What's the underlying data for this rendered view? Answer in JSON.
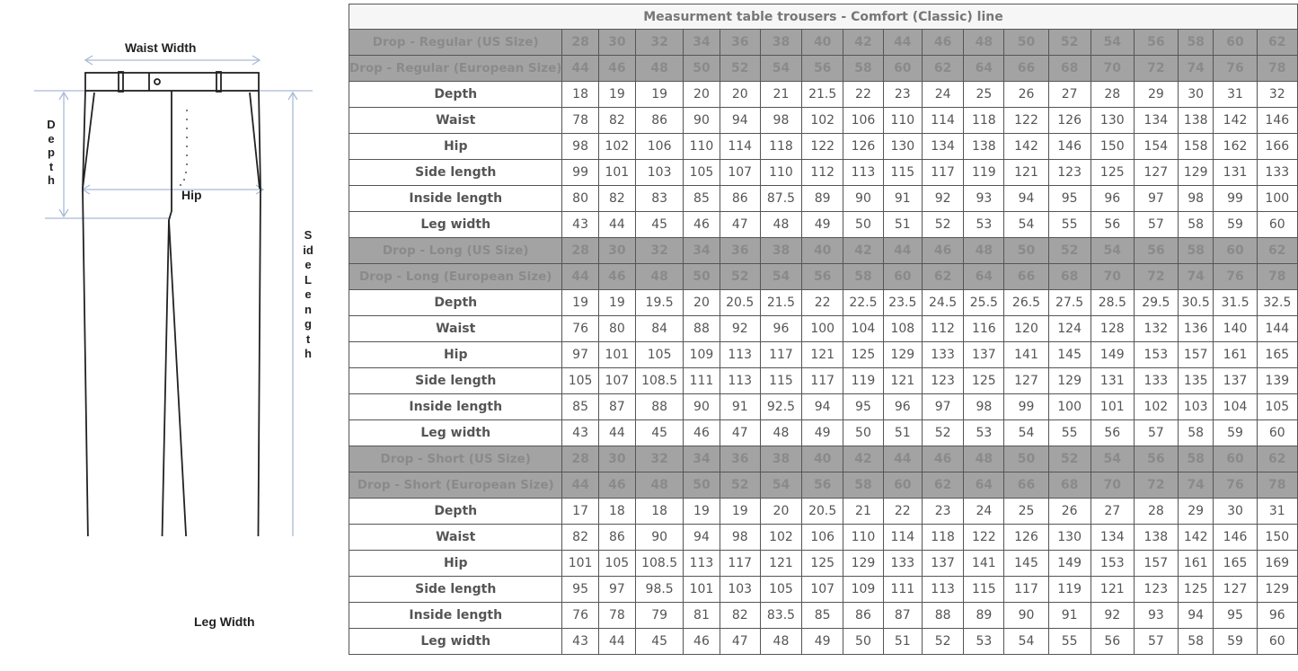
{
  "diagram": {
    "waist_width": "Waist Width",
    "depth": "Depth",
    "hip": "Hip",
    "side_length": "Side Length",
    "leg_width": "Leg Width"
  },
  "table": {
    "title": "Measurment table trousers - Comfort (Classic) line",
    "sections": [
      {
        "us_label": "Drop - Regular (US Size)",
        "us_sizes": [
          "28",
          "30",
          "32",
          "34",
          "36",
          "38",
          "40",
          "42",
          "44",
          "46",
          "48",
          "50",
          "52",
          "54",
          "56",
          "58",
          "60",
          "62"
        ],
        "eu_label": "Drop - Regular (European Size)",
        "eu_sizes": [
          "44",
          "46",
          "48",
          "50",
          "52",
          "54",
          "56",
          "58",
          "60",
          "62",
          "64",
          "66",
          "68",
          "70",
          "72",
          "74",
          "76",
          "78"
        ],
        "rows": [
          {
            "label": "Depth",
            "values": [
              "18",
              "19",
              "19",
              "20",
              "20",
              "21",
              "21.5",
              "22",
              "23",
              "24",
              "25",
              "26",
              "27",
              "28",
              "29",
              "30",
              "31",
              "32"
            ]
          },
          {
            "label": "Waist",
            "values": [
              "78",
              "82",
              "86",
              "90",
              "94",
              "98",
              "102",
              "106",
              "110",
              "114",
              "118",
              "122",
              "126",
              "130",
              "134",
              "138",
              "142",
              "146"
            ]
          },
          {
            "label": "Hip",
            "values": [
              "98",
              "102",
              "106",
              "110",
              "114",
              "118",
              "122",
              "126",
              "130",
              "134",
              "138",
              "142",
              "146",
              "150",
              "154",
              "158",
              "162",
              "166"
            ]
          },
          {
            "label": "Side length",
            "values": [
              "99",
              "101",
              "103",
              "105",
              "107",
              "110",
              "112",
              "113",
              "115",
              "117",
              "119",
              "121",
              "123",
              "125",
              "127",
              "129",
              "131",
              "133"
            ]
          },
          {
            "label": "Inside length",
            "values": [
              "80",
              "82",
              "83",
              "85",
              "86",
              "87.5",
              "89",
              "90",
              "91",
              "92",
              "93",
              "94",
              "95",
              "96",
              "97",
              "98",
              "99",
              "100"
            ]
          },
          {
            "label": "Leg width",
            "values": [
              "43",
              "44",
              "45",
              "46",
              "47",
              "48",
              "49",
              "50",
              "51",
              "52",
              "53",
              "54",
              "55",
              "56",
              "57",
              "58",
              "59",
              "60"
            ]
          }
        ]
      },
      {
        "us_label": "Drop - Long (US Size)",
        "us_sizes": [
          "28",
          "30",
          "32",
          "34",
          "36",
          "38",
          "40",
          "42",
          "44",
          "46",
          "48",
          "50",
          "52",
          "54",
          "56",
          "58",
          "60",
          "62"
        ],
        "eu_label": "Drop - Long (European Size)",
        "eu_sizes": [
          "44",
          "46",
          "48",
          "50",
          "52",
          "54",
          "56",
          "58",
          "60",
          "62",
          "64",
          "66",
          "68",
          "70",
          "72",
          "74",
          "76",
          "78"
        ],
        "rows": [
          {
            "label": "Depth",
            "values": [
              "19",
              "19",
              "19.5",
              "20",
              "20.5",
              "21.5",
              "22",
              "22.5",
              "23.5",
              "24.5",
              "25.5",
              "26.5",
              "27.5",
              "28.5",
              "29.5",
              "30.5",
              "31.5",
              "32.5"
            ]
          },
          {
            "label": "Waist",
            "values": [
              "76",
              "80",
              "84",
              "88",
              "92",
              "96",
              "100",
              "104",
              "108",
              "112",
              "116",
              "120",
              "124",
              "128",
              "132",
              "136",
              "140",
              "144"
            ]
          },
          {
            "label": "Hip",
            "values": [
              "97",
              "101",
              "105",
              "109",
              "113",
              "117",
              "121",
              "125",
              "129",
              "133",
              "137",
              "141",
              "145",
              "149",
              "153",
              "157",
              "161",
              "165"
            ]
          },
          {
            "label": "Side length",
            "values": [
              "105",
              "107",
              "108.5",
              "111",
              "113",
              "115",
              "117",
              "119",
              "121",
              "123",
              "125",
              "127",
              "129",
              "131",
              "133",
              "135",
              "137",
              "139"
            ]
          },
          {
            "label": "Inside length",
            "values": [
              "85",
              "87",
              "88",
              "90",
              "91",
              "92.5",
              "94",
              "95",
              "96",
              "97",
              "98",
              "99",
              "100",
              "101",
              "102",
              "103",
              "104",
              "105"
            ]
          },
          {
            "label": "Leg width",
            "values": [
              "43",
              "44",
              "45",
              "46",
              "47",
              "48",
              "49",
              "50",
              "51",
              "52",
              "53",
              "54",
              "55",
              "56",
              "57",
              "58",
              "59",
              "60"
            ]
          }
        ]
      },
      {
        "us_label": "Drop - Short (US Size)",
        "us_sizes": [
          "28",
          "30",
          "32",
          "34",
          "36",
          "38",
          "40",
          "42",
          "44",
          "46",
          "48",
          "50",
          "52",
          "54",
          "56",
          "58",
          "60",
          "62"
        ],
        "eu_label": "Drop - Short (European Size)",
        "eu_sizes": [
          "44",
          "46",
          "48",
          "50",
          "52",
          "54",
          "56",
          "58",
          "60",
          "62",
          "64",
          "66",
          "68",
          "70",
          "72",
          "74",
          "76",
          "78"
        ],
        "rows": [
          {
            "label": "Depth",
            "values": [
              "17",
              "18",
              "18",
              "19",
              "19",
              "20",
              "20.5",
              "21",
              "22",
              "23",
              "24",
              "25",
              "26",
              "27",
              "28",
              "29",
              "30",
              "31"
            ]
          },
          {
            "label": "Waist",
            "values": [
              "82",
              "86",
              "90",
              "94",
              "98",
              "102",
              "106",
              "110",
              "114",
              "118",
              "122",
              "126",
              "130",
              "134",
              "138",
              "142",
              "146",
              "150"
            ]
          },
          {
            "label": "Hip",
            "values": [
              "101",
              "105",
              "108.5",
              "113",
              "117",
              "121",
              "125",
              "129",
              "133",
              "137",
              "141",
              "145",
              "149",
              "153",
              "157",
              "161",
              "165",
              "169"
            ]
          },
          {
            "label": "Side length",
            "values": [
              "95",
              "97",
              "98.5",
              "101",
              "103",
              "105",
              "107",
              "109",
              "111",
              "113",
              "115",
              "117",
              "119",
              "121",
              "123",
              "125",
              "127",
              "129"
            ]
          },
          {
            "label": "Inside length",
            "values": [
              "76",
              "78",
              "79",
              "81",
              "82",
              "83.5",
              "85",
              "86",
              "87",
              "88",
              "89",
              "90",
              "91",
              "92",
              "93",
              "94",
              "95",
              "96"
            ]
          },
          {
            "label": "Leg width",
            "values": [
              "43",
              "44",
              "45",
              "46",
              "47",
              "48",
              "49",
              "50",
              "51",
              "52",
              "53",
              "54",
              "55",
              "56",
              "57",
              "58",
              "59",
              "60"
            ]
          }
        ]
      }
    ]
  }
}
